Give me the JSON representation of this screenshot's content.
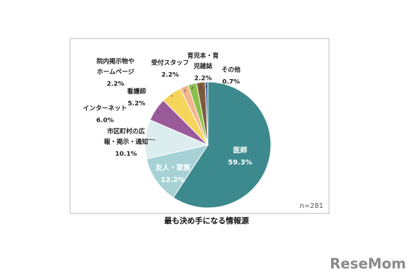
{
  "chart_data": {
    "type": "pie",
    "title": "最も決め手になる情報源",
    "annotation": "n=281",
    "categories": [
      [
        "医師"
      ],
      [
        "友人・家族"
      ],
      [
        "市区町村の広",
        "報・掲示・通知"
      ],
      [
        "インターネット"
      ],
      [
        "看護師"
      ],
      [
        "院内掲示物や",
        "ホームページ"
      ],
      [
        "受付スタッフ"
      ],
      [
        "育児本・育",
        "児雑誌"
      ],
      [
        "その他"
      ]
    ],
    "values": [
      59.3,
      12.2,
      10.1,
      6.0,
      5.2,
      2.2,
      2.2,
      2.2,
      0.7
    ],
    "value_labels": [
      "59.3%",
      "12.2%",
      "10.1%",
      "6.0%",
      "5.2%",
      "2.2%",
      "2.2%",
      "2.2%",
      "0.7%"
    ],
    "colors": [
      "#3d8a8e",
      "#a6d2d5",
      "#dcedef",
      "#9b5b9a",
      "#f6d55c",
      "#f2b68e",
      "#8cc04b",
      "#7b5a3c",
      "#4a6aa3"
    ]
  },
  "logo": "ReseMom"
}
